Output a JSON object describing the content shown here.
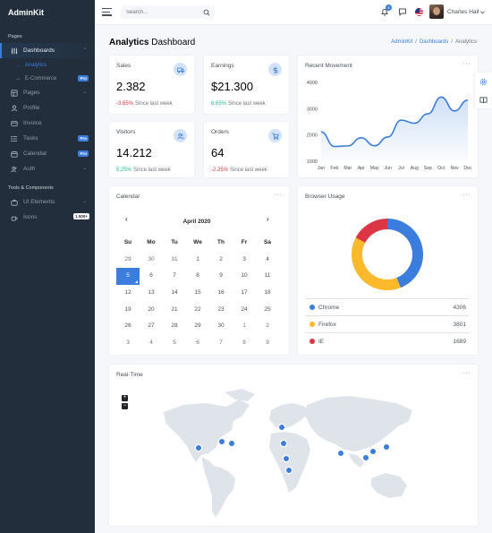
{
  "brand": "AdminKit",
  "sidebar": {
    "header_pages": "Pages",
    "header_tools": "Tools & Components",
    "dashboards": "Dashboards",
    "analytics": "Analytics",
    "ecommerce": "E-Commerce",
    "pages": "Pages",
    "profile": "Profile",
    "invoice": "Invoice",
    "tasks": "Tasks",
    "calendar": "Calendar",
    "auth": "Auth",
    "ui_elements": "UI Elements",
    "icons": "Icons",
    "pro_badge": "Pro",
    "icons_badge": "1.500+"
  },
  "topbar": {
    "search_placeholder": "Search...",
    "notification_count": "4",
    "user_name": "Charles Hall"
  },
  "page": {
    "title_bold": "Analytics",
    "title_rest": " Dashboard",
    "breadcrumb": [
      "AdminKit",
      "Dashboards",
      "Analytics"
    ],
    "breadcrumb_sep": "/"
  },
  "stats": {
    "sales": {
      "title": "Sales",
      "value": "2.382",
      "change": "-3.65%",
      "since": "Since last week"
    },
    "earnings": {
      "title": "Earnings",
      "value": "$21.300",
      "change": "6.65%",
      "since": "Since last week"
    },
    "visitors": {
      "title": "Visitors",
      "value": "14.212",
      "change": "5.25%",
      "since": "Since last week"
    },
    "orders": {
      "title": "Orders",
      "value": "64",
      "change": "-2.25%",
      "since": "Since last week"
    }
  },
  "cards": {
    "recent_movement": "Recent Movement",
    "calendar": "Calendar",
    "browser_usage": "Browser Usage",
    "realtime": "Real-Time",
    "dots": "···"
  },
  "chart_data": {
    "type": "area",
    "x": [
      "Jan",
      "Feb",
      "Mar",
      "Apr",
      "May",
      "Jun",
      "Jul",
      "Aug",
      "Sep",
      "Oct",
      "Nov",
      "Dec"
    ],
    "values": [
      2115,
      1562,
      1584,
      1892,
      1587,
      1923,
      2566,
      2448,
      2805,
      3438,
      2917,
      3327
    ],
    "yticks": [
      1000,
      2000,
      3000,
      4000
    ],
    "ylim": [
      1000,
      4000
    ],
    "color": "#3b7ddd"
  },
  "calendar": {
    "month": "April 2020",
    "prev": "‹",
    "next": "›",
    "dow": [
      "Su",
      "Mo",
      "Tu",
      "We",
      "Th",
      "Fr",
      "Sa"
    ],
    "days": [
      {
        "d": "29",
        "m": 0
      },
      {
        "d": "30",
        "m": 0
      },
      {
        "d": "31",
        "m": 0
      },
      {
        "d": "1"
      },
      {
        "d": "2"
      },
      {
        "d": "3"
      },
      {
        "d": "4"
      },
      {
        "d": "5",
        "s": 1
      },
      {
        "d": "6"
      },
      {
        "d": "7"
      },
      {
        "d": "8"
      },
      {
        "d": "9"
      },
      {
        "d": "10"
      },
      {
        "d": "11"
      },
      {
        "d": "12"
      },
      {
        "d": "13"
      },
      {
        "d": "14"
      },
      {
        "d": "15"
      },
      {
        "d": "16"
      },
      {
        "d": "17"
      },
      {
        "d": "18"
      },
      {
        "d": "19"
      },
      {
        "d": "20"
      },
      {
        "d": "21"
      },
      {
        "d": "22"
      },
      {
        "d": "23"
      },
      {
        "d": "24"
      },
      {
        "d": "25"
      },
      {
        "d": "26"
      },
      {
        "d": "27"
      },
      {
        "d": "28"
      },
      {
        "d": "29"
      },
      {
        "d": "30"
      },
      {
        "d": "1",
        "m": 1
      },
      {
        "d": "2",
        "m": 1
      },
      {
        "d": "3",
        "m": 1
      },
      {
        "d": "4",
        "m": 1
      },
      {
        "d": "5",
        "m": 1
      },
      {
        "d": "6",
        "m": 1
      },
      {
        "d": "7",
        "m": 1
      },
      {
        "d": "8",
        "m": 1
      },
      {
        "d": "9",
        "m": 1
      }
    ]
  },
  "browser_usage": [
    {
      "name": "Chrome",
      "value": 4306,
      "color": "#3b7ddd"
    },
    {
      "name": "Firefox",
      "value": 3801,
      "color": "#fcb92c"
    },
    {
      "name": "IE",
      "value": 1689,
      "color": "#dc3545"
    }
  ],
  "map": {
    "zoom_in": "+",
    "zoom_out": "−"
  }
}
